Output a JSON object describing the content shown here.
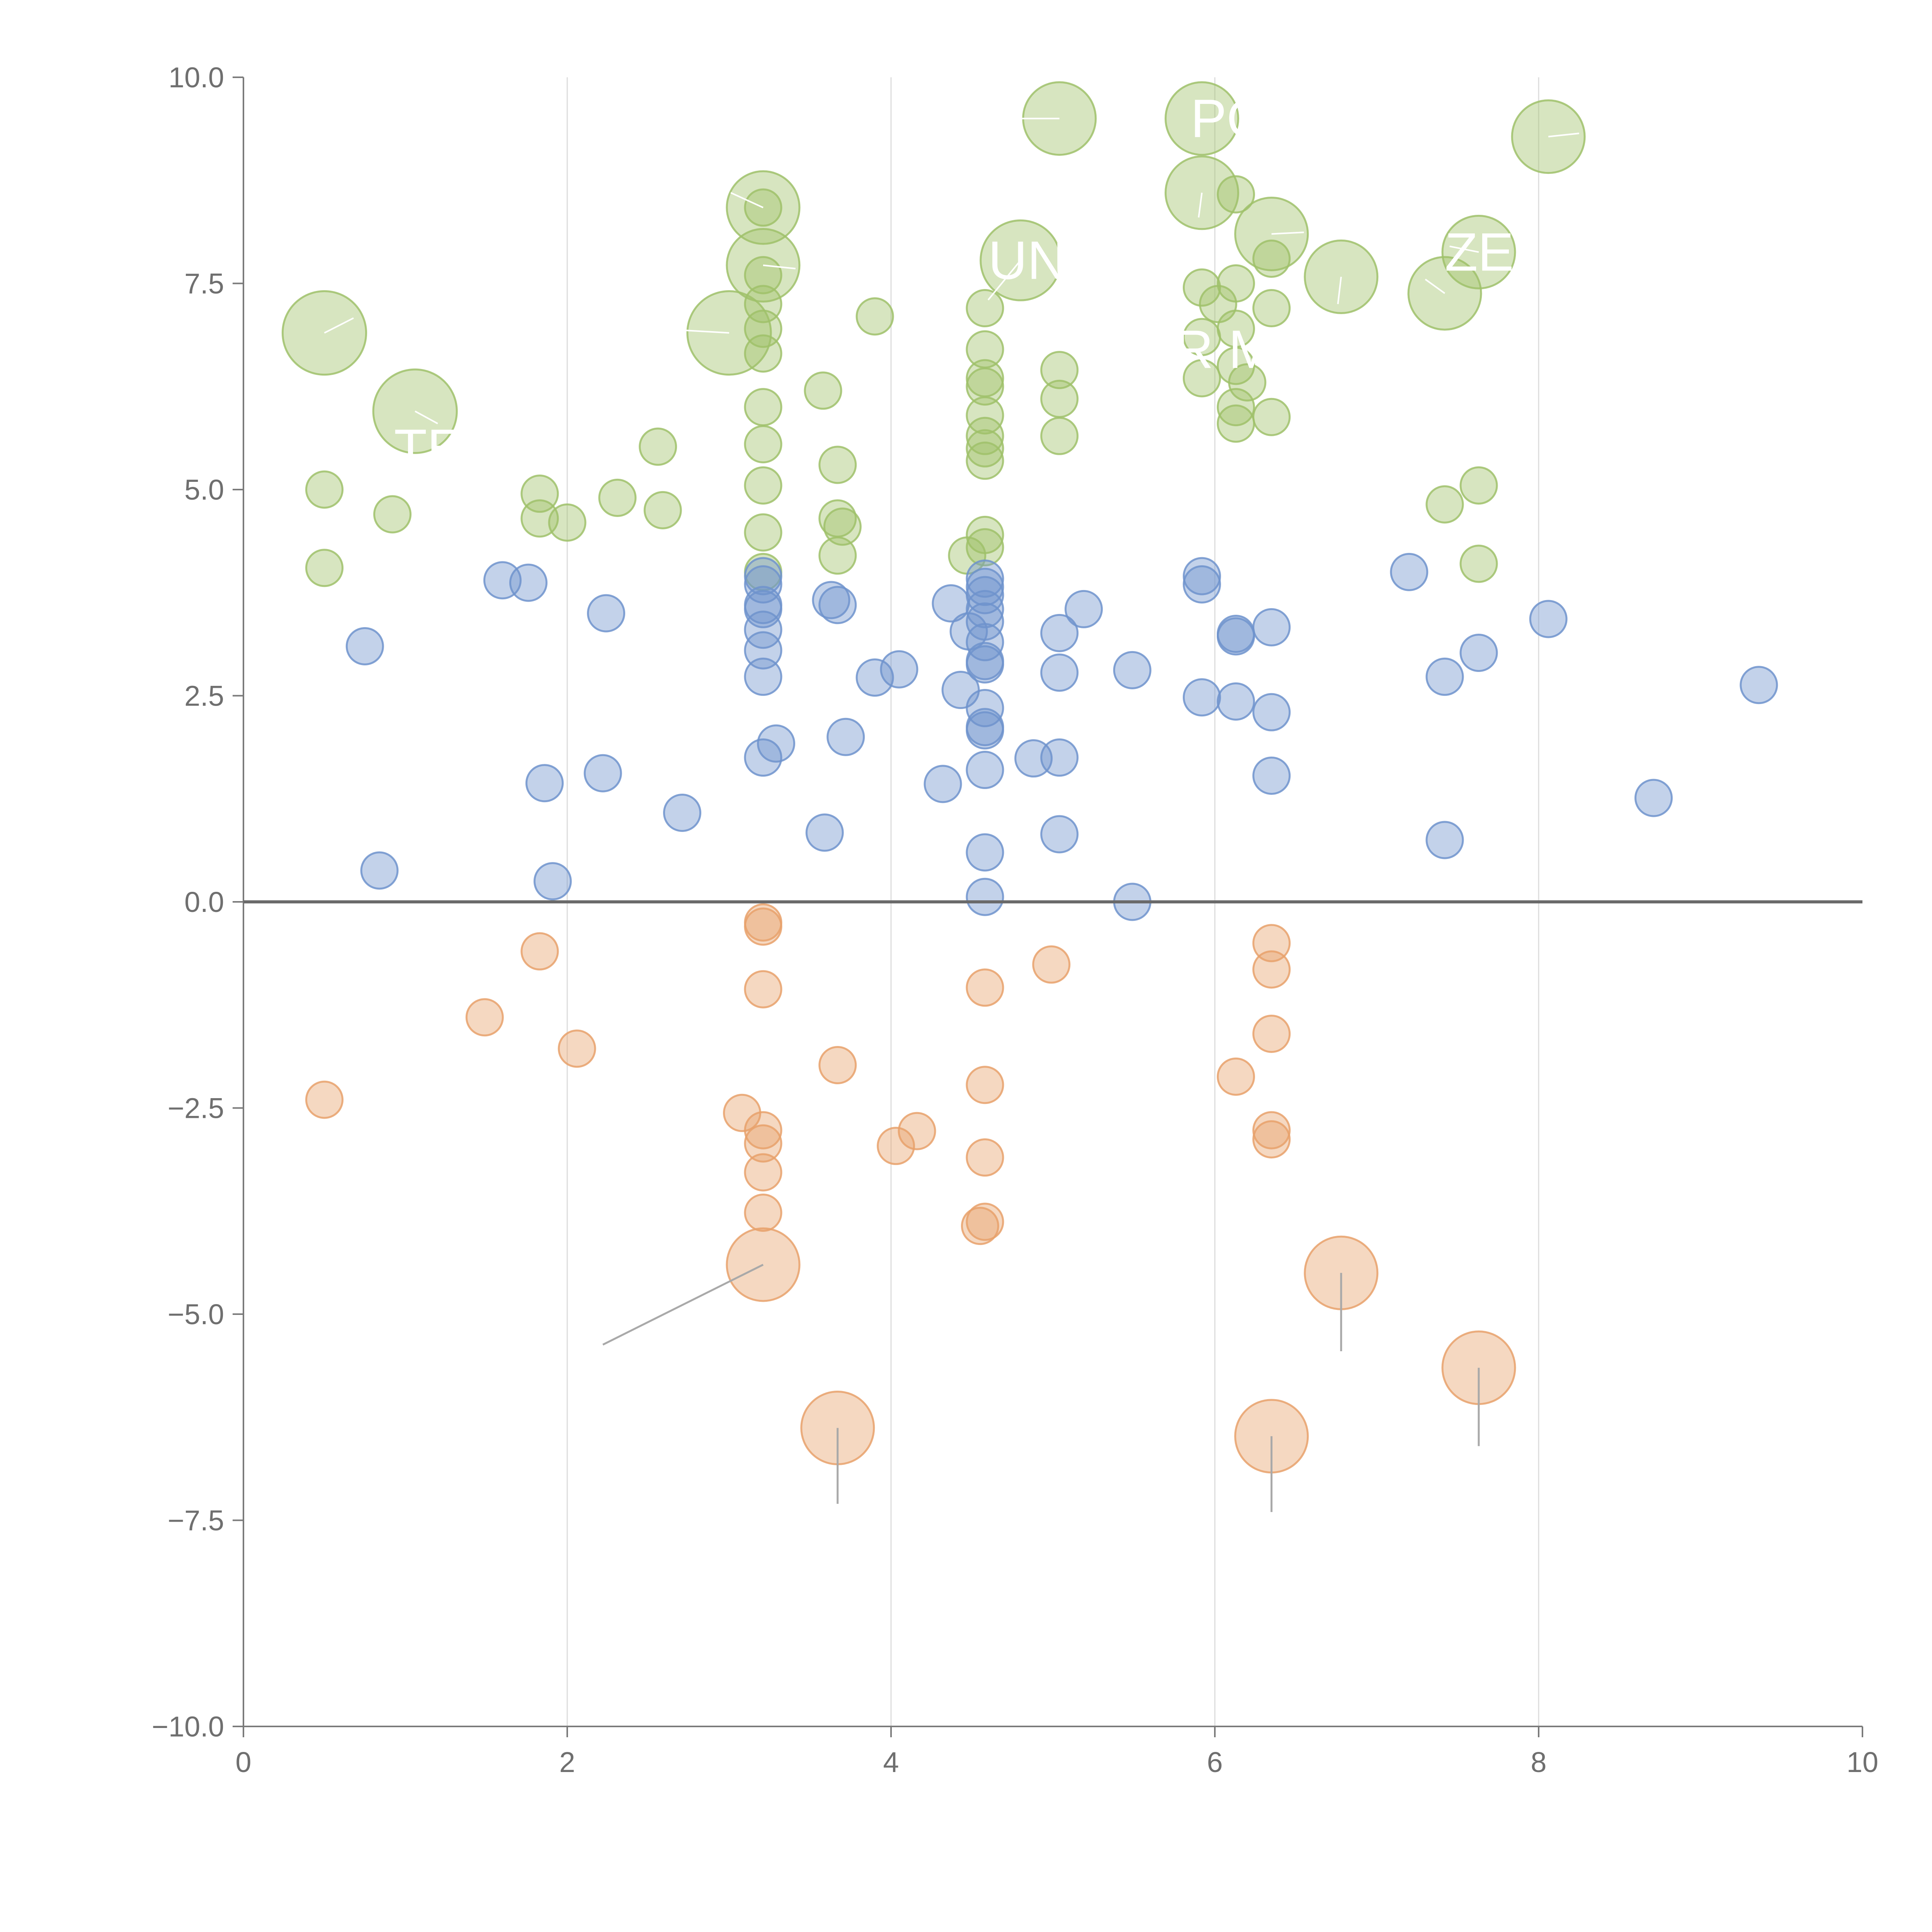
{
  "chart_data": {
    "type": "scatter",
    "subtype": "bubble",
    "title": "",
    "xlabel": "",
    "ylabel": "",
    "xlim": [
      0,
      10
    ],
    "ylim": [
      -10,
      10
    ],
    "x_ticks": [
      0,
      2,
      4,
      6,
      8,
      10
    ],
    "x_tick_labels": [
      "0",
      "2",
      "4",
      "6",
      "8",
      "10"
    ],
    "y_ticks": [
      10,
      7.5,
      5,
      2.5,
      0,
      -2.5,
      -5,
      -7.5,
      -10
    ],
    "y_tick_labels": [
      "10.0",
      "7.5",
      "5.0",
      "2.5",
      "0.0",
      "−2.5",
      "−5.0",
      "−7.5",
      "−10.0"
    ],
    "vertical_grid": [
      2,
      4,
      6,
      8
    ],
    "zero_line": true,
    "colors": {
      "green": "#9fc16a",
      "blue": "#6f93cd",
      "orange": "#e8a16b",
      "axis": "#7a7a7a",
      "grid": "#dcdcdc",
      "leader": "#a9a9a9"
    },
    "series": [
      {
        "name": "green",
        "color": "#9fc16a",
        "points": [
          {
            "x": 0.5,
            "y": 5.0,
            "s": 1
          },
          {
            "x": 0.5,
            "y": 4.05,
            "s": 1
          },
          {
            "x": 0.92,
            "y": 4.7,
            "s": 1
          },
          {
            "x": 1.83,
            "y": 4.95,
            "s": 1
          },
          {
            "x": 1.83,
            "y": 4.65,
            "s": 1
          },
          {
            "x": 2.0,
            "y": 4.6,
            "s": 1
          },
          {
            "x": 2.31,
            "y": 4.9,
            "s": 1
          },
          {
            "x": 2.56,
            "y": 5.52,
            "s": 1
          },
          {
            "x": 2.59,
            "y": 4.75,
            "s": 1
          },
          {
            "x": 3.21,
            "y": 8.42,
            "s": 1
          },
          {
            "x": 3.21,
            "y": 7.6,
            "s": 1
          },
          {
            "x": 3.21,
            "y": 7.25,
            "s": 1
          },
          {
            "x": 3.21,
            "y": 6.95,
            "s": 1
          },
          {
            "x": 3.21,
            "y": 6.65,
            "s": 1
          },
          {
            "x": 3.21,
            "y": 6.0,
            "s": 1
          },
          {
            "x": 3.21,
            "y": 5.55,
            "s": 1
          },
          {
            "x": 3.21,
            "y": 5.05,
            "s": 1
          },
          {
            "x": 3.21,
            "y": 4.48,
            "s": 1
          },
          {
            "x": 3.21,
            "y": 4.0,
            "s": 1
          },
          {
            "x": 3.58,
            "y": 6.2,
            "s": 1
          },
          {
            "x": 3.67,
            "y": 5.3,
            "s": 1
          },
          {
            "x": 3.67,
            "y": 4.65,
            "s": 1
          },
          {
            "x": 3.67,
            "y": 4.2,
            "s": 1
          },
          {
            "x": 3.7,
            "y": 4.55,
            "s": 1
          },
          {
            "x": 3.9,
            "y": 7.1,
            "s": 1
          },
          {
            "x": 4.58,
            "y": 7.2,
            "s": 1
          },
          {
            "x": 4.58,
            "y": 6.7,
            "s": 1
          },
          {
            "x": 4.58,
            "y": 6.35,
            "s": 1
          },
          {
            "x": 4.58,
            "y": 6.25,
            "s": 1
          },
          {
            "x": 4.58,
            "y": 5.9,
            "s": 1
          },
          {
            "x": 4.58,
            "y": 5.65,
            "s": 1
          },
          {
            "x": 4.58,
            "y": 5.5,
            "s": 1
          },
          {
            "x": 4.58,
            "y": 5.35,
            "s": 1
          },
          {
            "x": 4.58,
            "y": 4.45,
            "s": 1
          },
          {
            "x": 4.58,
            "y": 4.3,
            "s": 1
          },
          {
            "x": 4.47,
            "y": 4.2,
            "s": 1
          },
          {
            "x": 5.04,
            "y": 6.45,
            "s": 1
          },
          {
            "x": 5.04,
            "y": 6.1,
            "s": 1
          },
          {
            "x": 5.04,
            "y": 5.65,
            "s": 1
          },
          {
            "x": 5.92,
            "y": 7.45,
            "s": 1
          },
          {
            "x": 5.92,
            "y": 6.85,
            "s": 1
          },
          {
            "x": 5.92,
            "y": 6.35,
            "s": 1
          },
          {
            "x": 6.02,
            "y": 7.25,
            "s": 1
          },
          {
            "x": 6.13,
            "y": 8.58,
            "s": 1
          },
          {
            "x": 6.13,
            "y": 7.5,
            "s": 1
          },
          {
            "x": 6.13,
            "y": 6.95,
            "s": 1
          },
          {
            "x": 6.13,
            "y": 6.5,
            "s": 1
          },
          {
            "x": 6.13,
            "y": 6.0,
            "s": 1
          },
          {
            "x": 6.13,
            "y": 5.8,
            "s": 1
          },
          {
            "x": 6.2,
            "y": 6.3,
            "s": 1
          },
          {
            "x": 6.35,
            "y": 7.8,
            "s": 1
          },
          {
            "x": 6.35,
            "y": 7.2,
            "s": 1
          },
          {
            "x": 6.35,
            "y": 5.88,
            "s": 1
          },
          {
            "x": 7.42,
            "y": 4.82,
            "s": 1
          },
          {
            "x": 7.63,
            "y": 5.05,
            "s": 1
          },
          {
            "x": 7.63,
            "y": 4.1,
            "s": 1
          },
          {
            "x": 0.5,
            "y": 6.9,
            "s": 2.3
          },
          {
            "x": 1.06,
            "y": 5.95,
            "s": 2.3
          },
          {
            "x": 3.0,
            "y": 6.9,
            "s": 2.3
          },
          {
            "x": 3.21,
            "y": 8.42,
            "s": 2.0
          },
          {
            "x": 3.21,
            "y": 7.72,
            "s": 2.0
          },
          {
            "x": 4.8,
            "y": 7.78,
            "s": 2.2
          },
          {
            "x": 5.04,
            "y": 9.5,
            "s": 2.0
          },
          {
            "x": 5.92,
            "y": 9.5,
            "s": 2.0
          },
          {
            "x": 5.92,
            "y": 8.6,
            "s": 2.0
          },
          {
            "x": 6.35,
            "y": 8.1,
            "s": 2.0
          },
          {
            "x": 6.78,
            "y": 7.58,
            "s": 2.0
          },
          {
            "x": 7.42,
            "y": 7.38,
            "s": 2.0
          },
          {
            "x": 7.63,
            "y": 7.88,
            "s": 2.0
          },
          {
            "x": 8.06,
            "y": 9.28,
            "s": 2.0
          }
        ]
      },
      {
        "name": "blue",
        "color": "#6f93cd",
        "points": [
          {
            "x": 0.75,
            "y": 3.1,
            "s": 1
          },
          {
            "x": 0.84,
            "y": 0.38,
            "s": 1
          },
          {
            "x": 1.6,
            "y": 3.9,
            "s": 1
          },
          {
            "x": 1.76,
            "y": 3.87,
            "s": 1
          },
          {
            "x": 1.86,
            "y": 1.44,
            "s": 1
          },
          {
            "x": 1.91,
            "y": 0.25,
            "s": 1
          },
          {
            "x": 2.22,
            "y": 1.56,
            "s": 1
          },
          {
            "x": 2.24,
            "y": 3.5,
            "s": 1
          },
          {
            "x": 2.71,
            "y": 1.08,
            "s": 1
          },
          {
            "x": 3.21,
            "y": 3.95,
            "s": 1
          },
          {
            "x": 3.21,
            "y": 3.85,
            "s": 1
          },
          {
            "x": 3.21,
            "y": 3.6,
            "s": 1
          },
          {
            "x": 3.21,
            "y": 3.55,
            "s": 1
          },
          {
            "x": 3.21,
            "y": 3.3,
            "s": 1
          },
          {
            "x": 3.21,
            "y": 3.05,
            "s": 1
          },
          {
            "x": 3.21,
            "y": 2.73,
            "s": 1
          },
          {
            "x": 3.21,
            "y": 1.75,
            "s": 1
          },
          {
            "x": 3.29,
            "y": 1.92,
            "s": 1
          },
          {
            "x": 3.59,
            "y": 0.84,
            "s": 1
          },
          {
            "x": 3.63,
            "y": 3.66,
            "s": 1
          },
          {
            "x": 3.67,
            "y": 3.6,
            "s": 1
          },
          {
            "x": 3.72,
            "y": 2.0,
            "s": 1
          },
          {
            "x": 3.9,
            "y": 2.72,
            "s": 1
          },
          {
            "x": 4.05,
            "y": 2.82,
            "s": 1
          },
          {
            "x": 4.32,
            "y": 1.43,
            "s": 1
          },
          {
            "x": 4.37,
            "y": 3.62,
            "s": 1
          },
          {
            "x": 4.43,
            "y": 2.57,
            "s": 1
          },
          {
            "x": 4.48,
            "y": 3.28,
            "s": 1
          },
          {
            "x": 4.58,
            "y": 3.92,
            "s": 1
          },
          {
            "x": 4.58,
            "y": 3.82,
            "s": 1
          },
          {
            "x": 4.58,
            "y": 3.72,
            "s": 1
          },
          {
            "x": 4.58,
            "y": 3.55,
            "s": 1
          },
          {
            "x": 4.58,
            "y": 3.4,
            "s": 1
          },
          {
            "x": 4.58,
            "y": 3.15,
            "s": 1
          },
          {
            "x": 4.58,
            "y": 2.92,
            "s": 1
          },
          {
            "x": 4.58,
            "y": 2.88,
            "s": 1
          },
          {
            "x": 4.58,
            "y": 2.35,
            "s": 1
          },
          {
            "x": 4.58,
            "y": 2.12,
            "s": 1
          },
          {
            "x": 4.58,
            "y": 2.08,
            "s": 1
          },
          {
            "x": 4.58,
            "y": 1.6,
            "s": 1
          },
          {
            "x": 4.58,
            "y": 0.6,
            "s": 1
          },
          {
            "x": 4.58,
            "y": 0.06,
            "s": 1
          },
          {
            "x": 4.88,
            "y": 1.74,
            "s": 1
          },
          {
            "x": 5.04,
            "y": 3.26,
            "s": 1
          },
          {
            "x": 5.04,
            "y": 2.78,
            "s": 1
          },
          {
            "x": 5.04,
            "y": 1.75,
            "s": 1
          },
          {
            "x": 5.04,
            "y": 0.82,
            "s": 1
          },
          {
            "x": 5.19,
            "y": 3.55,
            "s": 1
          },
          {
            "x": 5.49,
            "y": 2.81,
            "s": 1
          },
          {
            "x": 5.49,
            "y": 0.0,
            "s": 1
          },
          {
            "x": 5.92,
            "y": 3.95,
            "s": 1
          },
          {
            "x": 5.92,
            "y": 3.85,
            "s": 1
          },
          {
            "x": 5.92,
            "y": 2.48,
            "s": 1
          },
          {
            "x": 6.13,
            "y": 3.25,
            "s": 1
          },
          {
            "x": 6.13,
            "y": 3.22,
            "s": 1
          },
          {
            "x": 6.13,
            "y": 2.43,
            "s": 1
          },
          {
            "x": 6.35,
            "y": 3.33,
            "s": 1
          },
          {
            "x": 6.35,
            "y": 2.3,
            "s": 1
          },
          {
            "x": 6.35,
            "y": 1.53,
            "s": 1
          },
          {
            "x": 7.2,
            "y": 4.0,
            "s": 1
          },
          {
            "x": 7.42,
            "y": 2.73,
            "s": 1
          },
          {
            "x": 7.42,
            "y": 0.75,
            "s": 1
          },
          {
            "x": 7.63,
            "y": 3.02,
            "s": 1
          },
          {
            "x": 8.06,
            "y": 3.43,
            "s": 1
          },
          {
            "x": 8.71,
            "y": 1.26,
            "s": 1
          },
          {
            "x": 9.36,
            "y": 2.63,
            "s": 1
          }
        ]
      },
      {
        "name": "orange",
        "color": "#e8a16b",
        "points": [
          {
            "x": 0.5,
            "y": -2.4,
            "s": 1
          },
          {
            "x": 1.49,
            "y": -1.4,
            "s": 1
          },
          {
            "x": 1.83,
            "y": -0.6,
            "s": 1
          },
          {
            "x": 2.06,
            "y": -1.78,
            "s": 1
          },
          {
            "x": 3.08,
            "y": -2.56,
            "s": 1
          },
          {
            "x": 3.21,
            "y": -0.25,
            "s": 1
          },
          {
            "x": 3.21,
            "y": -0.3,
            "s": 1
          },
          {
            "x": 3.21,
            "y": -1.06,
            "s": 1
          },
          {
            "x": 3.21,
            "y": -2.77,
            "s": 1
          },
          {
            "x": 3.21,
            "y": -2.93,
            "s": 1
          },
          {
            "x": 3.21,
            "y": -3.28,
            "s": 1
          },
          {
            "x": 3.21,
            "y": -3.77,
            "s": 1
          },
          {
            "x": 3.67,
            "y": -1.98,
            "s": 1
          },
          {
            "x": 4.03,
            "y": -2.96,
            "s": 1
          },
          {
            "x": 4.16,
            "y": -2.78,
            "s": 1
          },
          {
            "x": 4.58,
            "y": -1.04,
            "s": 1
          },
          {
            "x": 4.58,
            "y": -2.22,
            "s": 1
          },
          {
            "x": 4.58,
            "y": -3.1,
            "s": 1
          },
          {
            "x": 4.58,
            "y": -3.88,
            "s": 1
          },
          {
            "x": 4.55,
            "y": -3.93,
            "s": 1
          },
          {
            "x": 4.99,
            "y": -0.76,
            "s": 1
          },
          {
            "x": 6.13,
            "y": -2.12,
            "s": 1
          },
          {
            "x": 6.35,
            "y": -0.5,
            "s": 1
          },
          {
            "x": 6.35,
            "y": -0.82,
            "s": 1
          },
          {
            "x": 6.35,
            "y": -1.6,
            "s": 1
          },
          {
            "x": 6.35,
            "y": -2.77,
            "s": 1
          },
          {
            "x": 6.35,
            "y": -2.88,
            "s": 1
          },
          {
            "x": 3.21,
            "y": -4.4,
            "s": 2.0
          },
          {
            "x": 3.67,
            "y": -6.38,
            "s": 2.0
          },
          {
            "x": 6.35,
            "y": -6.48,
            "s": 2.0
          },
          {
            "x": 6.78,
            "y": -4.5,
            "s": 2.0
          },
          {
            "x": 7.63,
            "y": -5.65,
            "s": 2.0
          }
        ]
      }
    ],
    "annotations": [
      {
        "text": "PO",
        "x": 5.85,
        "y": 9.5
      },
      {
        "text": "UN",
        "x": 4.6,
        "y": 7.78
      },
      {
        "text": "ZE",
        "x": 7.42,
        "y": 7.88
      },
      {
        "text": "R M",
        "x": 5.75,
        "y": 6.7
      },
      {
        "text": "TE",
        "x": 0.93,
        "y": 5.5
      }
    ],
    "leader_lines": [
      {
        "x1": 3.21,
        "y1": -4.4,
        "x2": 2.22,
        "y2": -5.37,
        "color": "#a9a9a9"
      },
      {
        "x1": 3.67,
        "y1": -6.38,
        "x2": 3.67,
        "y2": -7.3,
        "color": "#a9a9a9"
      },
      {
        "x1": 6.35,
        "y1": -6.48,
        "x2": 6.35,
        "y2": -7.4,
        "color": "#a9a9a9"
      },
      {
        "x1": 6.78,
        "y1": -4.5,
        "x2": 6.78,
        "y2": -5.45,
        "color": "#a9a9a9"
      },
      {
        "x1": 7.63,
        "y1": -5.65,
        "x2": 7.63,
        "y2": -6.6,
        "color": "#a9a9a9"
      },
      {
        "x1": 0.5,
        "y1": 6.9,
        "x2": 0.68,
        "y2": 7.08,
        "color": "#ffffff"
      },
      {
        "x1": 3.0,
        "y1": 6.9,
        "x2": 2.56,
        "y2": 6.95,
        "color": "#ffffff"
      },
      {
        "x1": 3.21,
        "y1": 7.72,
        "x2": 3.41,
        "y2": 7.68,
        "color": "#ffffff"
      },
      {
        "x1": 3.21,
        "y1": 8.42,
        "x2": 3.01,
        "y2": 8.6,
        "color": "#ffffff"
      },
      {
        "x1": 4.8,
        "y1": 7.78,
        "x2": 4.6,
        "y2": 7.3,
        "color": "#ffffff"
      },
      {
        "x1": 5.04,
        "y1": 9.5,
        "x2": 4.75,
        "y2": 9.5,
        "color": "#ffffff"
      },
      {
        "x1": 5.92,
        "y1": 8.6,
        "x2": 5.9,
        "y2": 8.3,
        "color": "#ffffff"
      },
      {
        "x1": 6.35,
        "y1": 8.1,
        "x2": 6.55,
        "y2": 8.12,
        "color": "#ffffff"
      },
      {
        "x1": 6.78,
        "y1": 7.58,
        "x2": 6.76,
        "y2": 7.25,
        "color": "#ffffff"
      },
      {
        "x1": 7.42,
        "y1": 7.38,
        "x2": 7.3,
        "y2": 7.55,
        "color": "#ffffff"
      },
      {
        "x1": 7.63,
        "y1": 7.88,
        "x2": 7.45,
        "y2": 7.95,
        "color": "#ffffff"
      },
      {
        "x1": 8.06,
        "y1": 9.28,
        "x2": 8.25,
        "y2": 9.32,
        "color": "#ffffff"
      },
      {
        "x1": 1.06,
        "y1": 5.95,
        "x2": 1.2,
        "y2": 5.8,
        "color": "#ffffff"
      }
    ]
  }
}
